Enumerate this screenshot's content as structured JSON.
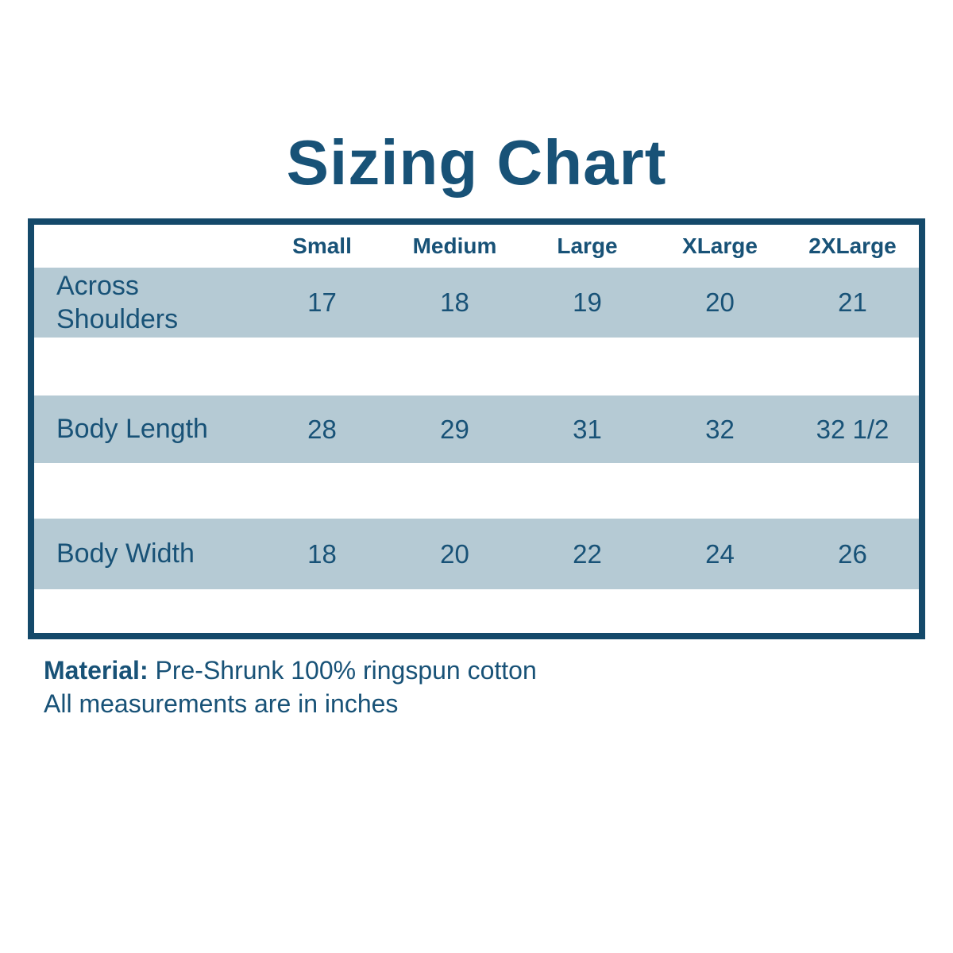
{
  "chart_data": {
    "type": "table",
    "title": "Sizing Chart",
    "size_columns": [
      "Small",
      "Medium",
      "Large",
      "XLarge",
      "2XLarge"
    ],
    "rows": [
      {
        "label": "Across Shoulders",
        "values": [
          "17",
          "18",
          "19",
          "20",
          "21"
        ]
      },
      {
        "label": "Body Length",
        "values": [
          "28",
          "29",
          "31",
          "32",
          "32 1/2"
        ]
      },
      {
        "label": "Body Width",
        "values": [
          "18",
          "20",
          "22",
          "24",
          "26"
        ]
      }
    ],
    "layout_hints": {
      "band_rows_shaded": true,
      "grid": "horizontal-bands-only",
      "border": "thick-outer-border"
    }
  },
  "footer": {
    "material_label": "Material:",
    "material_value": " Pre-Shrunk 100% ringspun cotton",
    "note": "All measurements are in inches"
  },
  "colors": {
    "accent_text": "#185277",
    "table_border": "#14496A",
    "row_band": "#B5CAD4",
    "background": "#FFFFFF"
  }
}
